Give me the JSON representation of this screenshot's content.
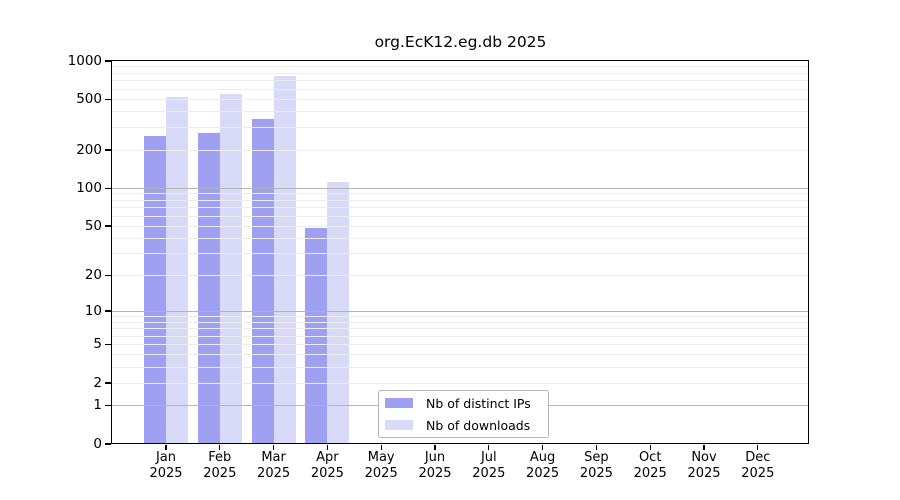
{
  "title": "org.EcK12.eg.db 2025",
  "legend": {
    "items": [
      {
        "label": "Nb of distinct IPs",
        "color": "#a0a0f2"
      },
      {
        "label": "Nb of downloads",
        "color": "#d9d9f8"
      }
    ]
  },
  "chart_data": {
    "type": "bar",
    "title": "org.EcK12.eg.db 2025",
    "categories": [
      "Jan 2025",
      "Feb 2025",
      "Mar 2025",
      "Apr 2025",
      "May 2025",
      "Jun 2025",
      "Jul 2025",
      "Aug 2025",
      "Sep 2025",
      "Oct 2025",
      "Nov 2025",
      "Dec 2025"
    ],
    "series": [
      {
        "name": "Nb of distinct IPs",
        "color": "#a0a0f2",
        "values": [
          260,
          273,
          350,
          48,
          null,
          null,
          null,
          null,
          null,
          null,
          null,
          null
        ]
      },
      {
        "name": "Nb of downloads",
        "color": "#d9d9f8",
        "values": [
          520,
          548,
          760,
          112,
          null,
          null,
          null,
          null,
          null,
          null,
          null,
          null
        ]
      }
    ],
    "yscale": "log1p",
    "ylim": [
      0,
      1000
    ],
    "yticks": [
      0,
      1,
      2,
      5,
      10,
      20,
      50,
      100,
      200,
      500,
      1000
    ],
    "grid": "horizontal major lines at 1/10/100 (gray) + minor log lines (light), drawn over bars",
    "legend_position": "inside bottom-center"
  },
  "colors": {
    "major_grid": "#b4b4b4",
    "minor_grid": "#ececec",
    "frame": "#000000",
    "background": "#ffffff"
  }
}
